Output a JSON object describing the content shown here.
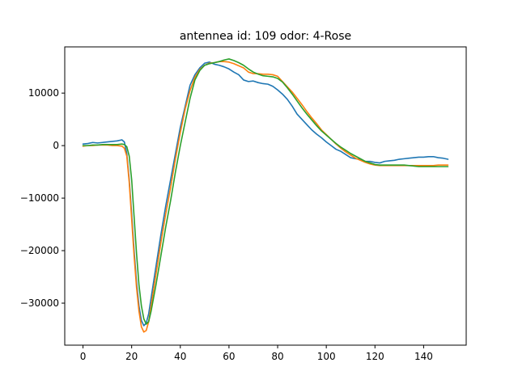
{
  "chart_data": {
    "type": "line",
    "title": "antennea id: 109    odor: 4-Rose",
    "xlabel": "",
    "ylabel": "",
    "xlim": [
      -7.5,
      157.5
    ],
    "ylim": [
      -38000,
      18800
    ],
    "xticks": [
      0,
      20,
      40,
      60,
      80,
      100,
      120,
      140
    ],
    "xtick_labels": [
      "0",
      "20",
      "40",
      "60",
      "80",
      "100",
      "120",
      "140"
    ],
    "yticks": [
      -30000,
      -20000,
      -10000,
      0,
      10000
    ],
    "ytick_labels": [
      "−30000",
      "−20000",
      "−10000",
      "0",
      "10000"
    ],
    "grid": false,
    "legend": "none",
    "series": [
      {
        "color": "#1f77b4",
        "x": [
          0,
          2,
          4,
          6,
          8,
          10,
          12,
          14,
          16,
          17,
          18,
          19,
          20,
          21,
          22,
          23,
          24,
          25,
          26,
          27,
          28,
          29,
          30,
          32,
          34,
          36,
          38,
          40,
          42,
          44,
          46,
          48,
          50,
          52,
          54,
          56,
          58,
          60,
          62,
          64,
          66,
          68,
          70,
          72,
          74,
          76,
          78,
          80,
          82,
          84,
          86,
          88,
          90,
          92,
          94,
          96,
          98,
          100,
          102,
          104,
          106,
          108,
          110,
          112,
          114,
          116,
          118,
          120,
          122,
          124,
          126,
          128,
          130,
          132,
          134,
          136,
          138,
          140,
          142,
          144,
          146,
          148,
          150
        ],
        "y": [
          300,
          400,
          600,
          500,
          600,
          700,
          800,
          900,
          1100,
          700,
          -1500,
          -6500,
          -13000,
          -20000,
          -26000,
          -30500,
          -33300,
          -34300,
          -33800,
          -32000,
          -29000,
          -26000,
          -23000,
          -17000,
          -11500,
          -6500,
          -1500,
          3500,
          7500,
          11500,
          13500,
          14800,
          15700,
          15900,
          15500,
          15300,
          15000,
          14600,
          14000,
          13500,
          12500,
          12200,
          12300,
          12000,
          11800,
          11700,
          11300,
          10600,
          9800,
          8800,
          7500,
          6000,
          5000,
          4000,
          3000,
          2200,
          1500,
          700,
          0,
          -700,
          -1100,
          -1700,
          -2300,
          -2500,
          -2600,
          -3000,
          -3000,
          -3200,
          -3300,
          -3000,
          -2900,
          -2800,
          -2600,
          -2500,
          -2400,
          -2300,
          -2200,
          -2200,
          -2100,
          -2100,
          -2300,
          -2400,
          -2600
        ]
      },
      {
        "color": "#ff7f0e",
        "x": [
          0,
          2,
          4,
          6,
          8,
          10,
          12,
          14,
          16,
          17,
          18,
          19,
          20,
          21,
          22,
          23,
          24,
          25,
          26,
          27,
          28,
          29,
          30,
          32,
          34,
          36,
          38,
          40,
          42,
          44,
          46,
          48,
          50,
          52,
          54,
          56,
          58,
          60,
          62,
          64,
          66,
          68,
          70,
          72,
          74,
          76,
          78,
          80,
          82,
          84,
          86,
          88,
          90,
          92,
          94,
          96,
          98,
          100,
          102,
          104,
          106,
          108,
          110,
          112,
          114,
          116,
          118,
          120,
          122,
          124,
          126,
          128,
          130,
          132,
          134,
          136,
          138,
          140,
          142,
          144,
          146,
          148,
          150
        ],
        "y": [
          -100,
          0,
          0,
          100,
          100,
          100,
          0,
          0,
          -100,
          -500,
          -2000,
          -7000,
          -14000,
          -21000,
          -27000,
          -31500,
          -34500,
          -35500,
          -35200,
          -33500,
          -30500,
          -27500,
          -24500,
          -18500,
          -13000,
          -8000,
          -2500,
          2500,
          7000,
          10500,
          13000,
          14500,
          15300,
          15700,
          15800,
          16000,
          16000,
          15900,
          15600,
          15200,
          14800,
          14000,
          13700,
          13700,
          13600,
          13600,
          13500,
          13200,
          12200,
          11200,
          10200,
          9000,
          7800,
          6500,
          5300,
          4200,
          3000,
          2100,
          1200,
          300,
          -500,
          -1200,
          -1800,
          -2400,
          -2800,
          -3200,
          -3500,
          -3700,
          -3800,
          -3800,
          -3800,
          -3800,
          -3800,
          -3800,
          -3800,
          -3800,
          -3800,
          -3800,
          -3800,
          -3800,
          -3700,
          -3700,
          -3700
        ]
      },
      {
        "color": "#2ca02c",
        "x": [
          0,
          2,
          4,
          6,
          8,
          10,
          12,
          14,
          16,
          17,
          18,
          19,
          20,
          21,
          22,
          23,
          24,
          25,
          26,
          27,
          28,
          29,
          30,
          32,
          34,
          36,
          38,
          40,
          42,
          44,
          46,
          48,
          50,
          52,
          54,
          56,
          58,
          60,
          62,
          64,
          66,
          68,
          70,
          72,
          74,
          76,
          78,
          80,
          82,
          84,
          86,
          88,
          90,
          92,
          94,
          96,
          98,
          100,
          102,
          104,
          106,
          108,
          110,
          112,
          114,
          116,
          118,
          120,
          122,
          124,
          126,
          128,
          130,
          132,
          134,
          136,
          138,
          140,
          142,
          144,
          146,
          148,
          150
        ],
        "y": [
          0,
          0,
          100,
          100,
          200,
          200,
          200,
          200,
          300,
          200,
          -200,
          -2000,
          -6500,
          -13500,
          -20500,
          -26500,
          -30500,
          -33000,
          -34000,
          -33500,
          -31500,
          -29000,
          -26500,
          -21000,
          -15500,
          -10500,
          -5000,
          0,
          4500,
          9000,
          12500,
          14300,
          15300,
          15600,
          15800,
          16000,
          16300,
          16500,
          16200,
          15800,
          15300,
          14600,
          14000,
          13600,
          13300,
          13200,
          13100,
          12800,
          12100,
          11000,
          9800,
          8500,
          7200,
          6000,
          4900,
          3800,
          2800,
          2000,
          1200,
          400,
          -300,
          -900,
          -1500,
          -2000,
          -2500,
          -3000,
          -3300,
          -3600,
          -3700,
          -3700,
          -3700,
          -3700,
          -3700,
          -3700,
          -3800,
          -3900,
          -4000,
          -4000,
          -4000,
          -4000,
          -4000,
          -4000,
          -4000
        ]
      }
    ]
  }
}
